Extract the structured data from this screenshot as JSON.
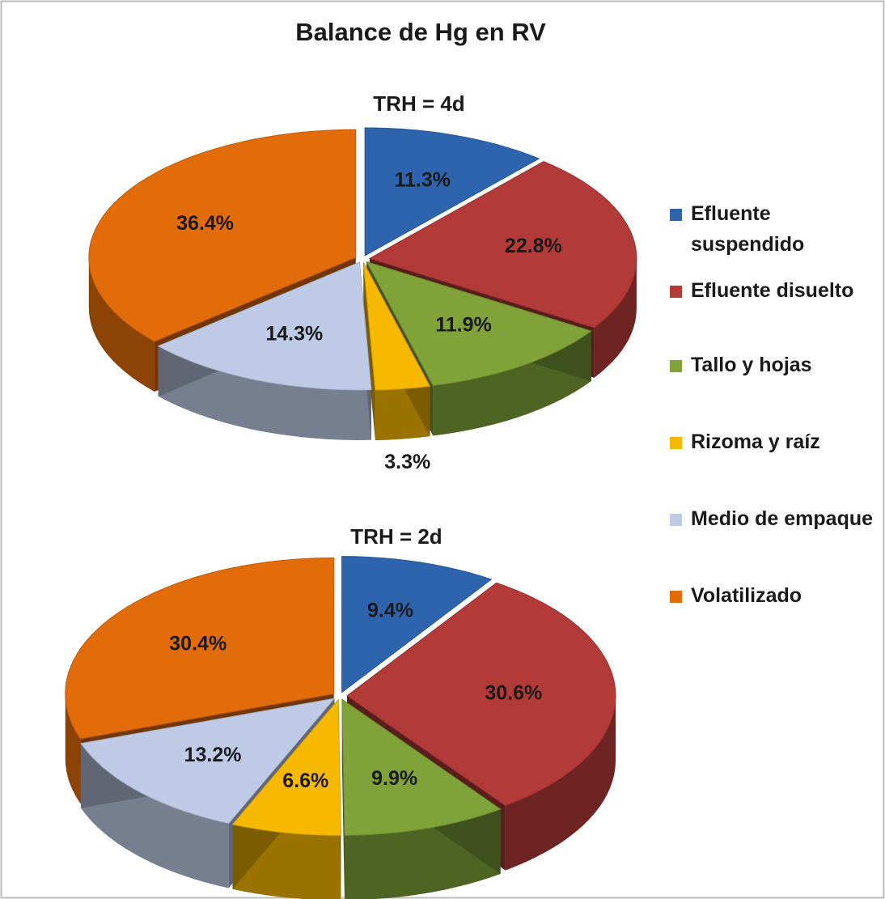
{
  "title": "Balance de Hg en RV",
  "chart_data": [
    {
      "type": "pie",
      "title": "TRH = 4d",
      "categories": [
        "Efluente suspendido",
        "Efluente disuelto",
        "Tallo y hojas",
        "Rizoma y raíz",
        "Medio de empaque",
        "Volatilizado"
      ],
      "values": [
        11.3,
        22.8,
        11.9,
        3.3,
        14.3,
        36.4
      ],
      "value_labels": [
        "11.3%",
        "22.8%",
        "11.9%",
        "3.3%",
        "14.3%",
        "36.4%"
      ],
      "colors": [
        "#2e64ad",
        "#b23a38",
        "#7fa239",
        "#f7b800",
        "#bfcbe6",
        "#e36c0a"
      ]
    },
    {
      "type": "pie",
      "title": "TRH = 2d",
      "categories": [
        "Efluente suspendido",
        "Efluente disuelto",
        "Tallo y hojas",
        "Rizoma y raíz",
        "Medio de empaque",
        "Volatilizado"
      ],
      "values": [
        9.4,
        30.6,
        9.9,
        6.6,
        13.2,
        30.4
      ],
      "value_labels": [
        "9.4%",
        "30.6%",
        "9.9%",
        "6.6%",
        "13.2%",
        "30.4%"
      ],
      "colors": [
        "#2e64ad",
        "#b23a38",
        "#7fa239",
        "#f7b800",
        "#bfcbe6",
        "#e36c0a"
      ]
    }
  ]
}
